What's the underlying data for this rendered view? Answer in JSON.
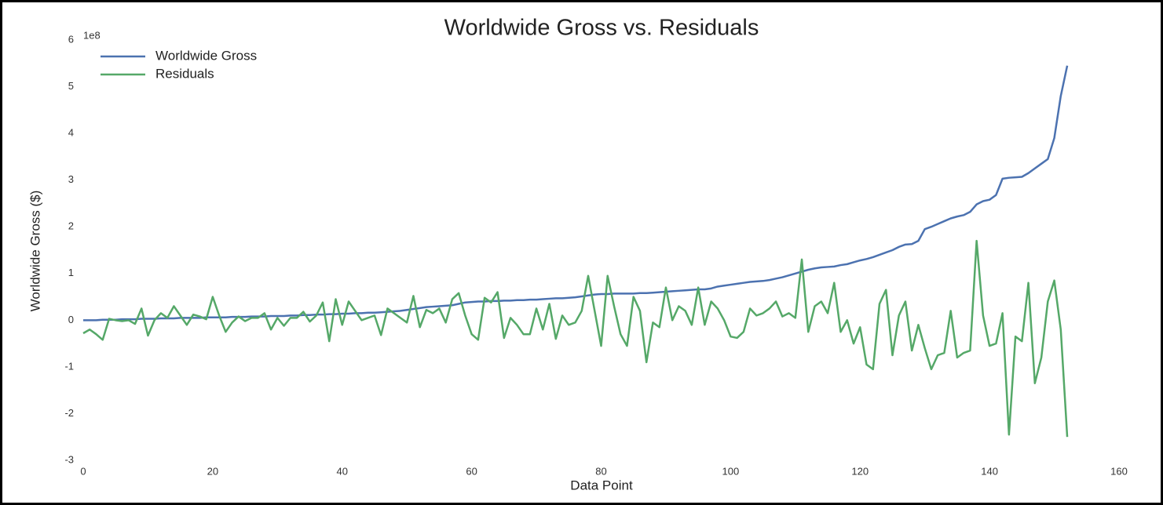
{
  "chart_data": {
    "type": "line",
    "title": "Worldwide Gross vs. Residuals",
    "xlabel": "Data Point",
    "ylabel": "Worldwide Gross ($)",
    "y_offset_label": "1e8",
    "x": [
      0,
      1,
      2,
      3,
      4,
      5,
      6,
      7,
      8,
      9,
      10,
      11,
      12,
      13,
      14,
      15,
      16,
      17,
      18,
      19,
      20,
      21,
      22,
      23,
      24,
      25,
      26,
      27,
      28,
      29,
      30,
      31,
      32,
      33,
      34,
      35,
      36,
      37,
      38,
      39,
      40,
      41,
      42,
      43,
      44,
      45,
      46,
      47,
      48,
      49,
      50,
      51,
      52,
      53,
      54,
      55,
      56,
      57,
      58,
      59,
      60,
      61,
      62,
      63,
      64,
      65,
      66,
      67,
      68,
      69,
      70,
      71,
      72,
      73,
      74,
      75,
      76,
      77,
      78,
      79,
      80,
      81,
      82,
      83,
      84,
      85,
      86,
      87,
      88,
      89,
      90,
      91,
      92,
      93,
      94,
      95,
      96,
      97,
      98,
      99,
      100,
      101,
      102,
      103,
      104,
      105,
      106,
      107,
      108,
      109,
      110,
      111,
      112,
      113,
      114,
      115,
      116,
      117,
      118,
      119,
      120,
      121,
      122,
      123,
      124,
      125,
      126,
      127,
      128,
      129,
      130,
      131,
      132,
      133,
      134,
      135,
      136,
      137,
      138,
      139,
      140,
      141,
      142,
      143,
      144,
      145,
      146,
      147,
      148,
      149,
      150,
      151,
      152
    ],
    "series": [
      {
        "name": "Worldwide Gross",
        "color": "#4c72b0",
        "values": [
          0.0,
          0.0,
          0.0,
          0.01,
          0.01,
          0.01,
          0.02,
          0.02,
          0.02,
          0.03,
          0.03,
          0.03,
          0.04,
          0.04,
          0.04,
          0.05,
          0.05,
          0.05,
          0.05,
          0.06,
          0.06,
          0.06,
          0.06,
          0.07,
          0.07,
          0.07,
          0.08,
          0.08,
          0.08,
          0.09,
          0.09,
          0.09,
          0.1,
          0.1,
          0.11,
          0.11,
          0.12,
          0.12,
          0.13,
          0.13,
          0.14,
          0.14,
          0.15,
          0.15,
          0.16,
          0.16,
          0.17,
          0.18,
          0.19,
          0.2,
          0.22,
          0.24,
          0.26,
          0.28,
          0.29,
          0.3,
          0.31,
          0.32,
          0.35,
          0.38,
          0.39,
          0.4,
          0.4,
          0.41,
          0.41,
          0.42,
          0.42,
          0.43,
          0.43,
          0.44,
          0.44,
          0.45,
          0.46,
          0.47,
          0.47,
          0.48,
          0.49,
          0.51,
          0.53,
          0.55,
          0.56,
          0.56,
          0.57,
          0.57,
          0.57,
          0.57,
          0.58,
          0.58,
          0.59,
          0.6,
          0.61,
          0.62,
          0.63,
          0.64,
          0.65,
          0.66,
          0.66,
          0.68,
          0.72,
          0.74,
          0.76,
          0.78,
          0.8,
          0.82,
          0.83,
          0.84,
          0.86,
          0.89,
          0.92,
          0.96,
          1.0,
          1.04,
          1.08,
          1.11,
          1.13,
          1.14,
          1.15,
          1.18,
          1.2,
          1.24,
          1.28,
          1.31,
          1.35,
          1.4,
          1.45,
          1.5,
          1.57,
          1.62,
          1.63,
          1.7,
          1.95,
          2.0,
          2.06,
          2.12,
          2.18,
          2.22,
          2.25,
          2.32,
          2.48,
          2.55,
          2.58,
          2.68,
          3.03,
          3.05,
          3.06,
          3.07,
          3.15,
          3.25,
          3.35,
          3.45,
          3.9,
          4.8,
          5.45
        ]
      },
      {
        "name": "Residuals",
        "color": "#55a868",
        "values": [
          -0.28,
          -0.2,
          -0.3,
          -0.42,
          0.03,
          0.0,
          -0.02,
          0.0,
          -0.08,
          0.25,
          -0.33,
          0.0,
          0.15,
          0.05,
          0.3,
          0.1,
          -0.1,
          0.12,
          0.08,
          0.02,
          0.5,
          0.1,
          -0.25,
          -0.05,
          0.08,
          -0.02,
          0.05,
          0.05,
          0.15,
          -0.2,
          0.05,
          -0.12,
          0.05,
          0.05,
          0.18,
          -0.03,
          0.1,
          0.38,
          -0.45,
          0.45,
          -0.1,
          0.4,
          0.2,
          0.0,
          0.05,
          0.1,
          -0.32,
          0.25,
          0.15,
          0.05,
          -0.05,
          0.52,
          -0.15,
          0.22,
          0.15,
          0.25,
          -0.05,
          0.45,
          0.58,
          0.1,
          -0.3,
          -0.42,
          0.48,
          0.38,
          0.6,
          -0.38,
          0.05,
          -0.1,
          -0.3,
          -0.3,
          0.25,
          -0.2,
          0.35,
          -0.4,
          0.1,
          -0.1,
          -0.05,
          0.2,
          0.95,
          0.2,
          -0.55,
          0.95,
          0.3,
          -0.3,
          -0.55,
          0.5,
          0.2,
          -0.9,
          -0.05,
          -0.15,
          0.7,
          0.0,
          0.3,
          0.2,
          -0.1,
          0.7,
          -0.1,
          0.4,
          0.25,
          0.0,
          -0.35,
          -0.38,
          -0.25,
          0.25,
          0.1,
          0.15,
          0.25,
          0.4,
          0.08,
          0.15,
          0.05,
          1.3,
          -0.25,
          0.3,
          0.4,
          0.15,
          0.8,
          -0.25,
          0.0,
          -0.5,
          -0.15,
          -0.95,
          -1.05,
          0.35,
          0.65,
          -0.75,
          0.1,
          0.4,
          -0.65,
          -0.1,
          -0.6,
          -1.05,
          -0.75,
          -0.7,
          0.2,
          -0.8,
          -0.7,
          -0.65,
          1.7,
          0.1,
          -0.55,
          -0.5,
          0.15,
          -2.45,
          -0.35,
          -0.45,
          0.8,
          -1.35,
          -0.8,
          0.4,
          0.85,
          -0.2,
          -2.5
        ]
      }
    ],
    "xlim": [
      0,
      160
    ],
    "xticks": [
      0,
      20,
      40,
      60,
      80,
      100,
      120,
      140,
      160
    ],
    "ylim": [
      -3,
      6
    ],
    "yticks": [
      -3,
      -2,
      -1,
      0,
      1,
      2,
      3,
      4,
      5,
      6
    ],
    "grid": false,
    "legend": "upper left"
  }
}
